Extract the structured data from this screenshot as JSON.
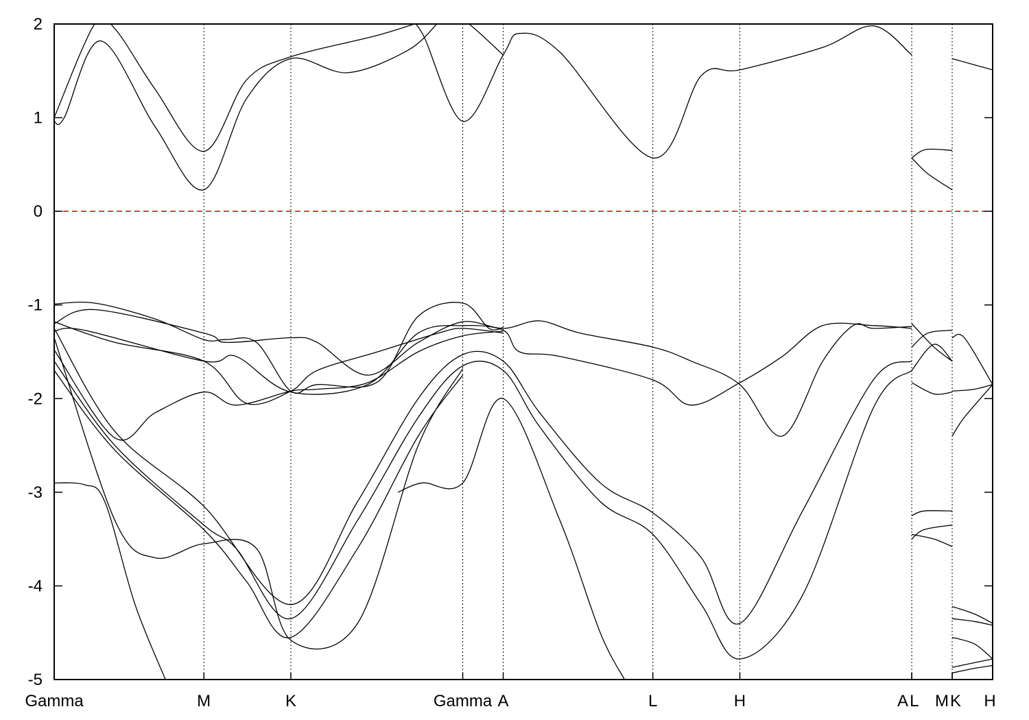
{
  "chart_data": {
    "type": "line",
    "title": "",
    "xlabel": "",
    "ylabel": "",
    "ylim": [
      -5,
      2
    ],
    "y_ticks": [
      "-5",
      "-4",
      "-3",
      "-2",
      "-1",
      "0",
      "1",
      "2"
    ],
    "x_range": [
      0,
      4.64
    ],
    "kpoints": [
      {
        "label": "Gamma",
        "x": 0.0
      },
      {
        "label": "M",
        "x": 0.74
      },
      {
        "label": "K",
        "x": 1.17
      },
      {
        "label": "Gamma",
        "x": 2.02
      },
      {
        "label": "A",
        "x": 2.22
      },
      {
        "label": "L",
        "x": 2.96
      },
      {
        "label": "H",
        "x": 3.39
      },
      {
        "label": "A",
        "x": 4.24
      },
      {
        "label": "L",
        "x": 4.24
      },
      {
        "label": "M",
        "x": 4.44
      },
      {
        "label": "K",
        "x": 4.44
      },
      {
        "label": "H",
        "x": 4.64
      }
    ],
    "fermi_level": 0,
    "fermi_color": "#e00000",
    "line_color": "#000000",
    "grid": false,
    "series": [
      {
        "values": [
          [
            0,
            0.96
          ],
          [
            0.05,
            1.0
          ],
          [
            0.23,
            1.82
          ],
          [
            0.5,
            0.9
          ],
          [
            0.74,
            0.23
          ],
          [
            0.95,
            1.2
          ],
          [
            1.17,
            1.63
          ],
          [
            1.45,
            1.48
          ],
          [
            1.75,
            1.72
          ],
          [
            1.9,
            2.02
          ]
        ]
      },
      {
        "values": [
          [
            0,
            1.0
          ],
          [
            0.2,
            2.0
          ],
          [
            0.3,
            1.95
          ],
          [
            0.5,
            1.3
          ],
          [
            0.74,
            0.64
          ],
          [
            0.95,
            1.4
          ],
          [
            1.17,
            1.65
          ],
          [
            1.6,
            1.88
          ],
          [
            1.85,
            2.05
          ]
        ]
      },
      {
        "values": [
          [
            1.72,
            2.1
          ],
          [
            1.82,
            1.9
          ],
          [
            2.02,
            0.96
          ],
          [
            2.22,
            1.67
          ],
          [
            2.3,
            1.9
          ],
          [
            2.5,
            1.7
          ],
          [
            2.96,
            0.57
          ],
          [
            3.2,
            1.45
          ],
          [
            3.39,
            1.51
          ],
          [
            3.8,
            1.75
          ],
          [
            4.05,
            1.98
          ],
          [
            4.24,
            1.67
          ]
        ]
      },
      {
        "values": [
          [
            1.9,
            2.1
          ],
          [
            2.02,
            2.05
          ],
          [
            2.22,
            1.67
          ]
        ]
      },
      {
        "values": [
          [
            4.24,
            0.57
          ],
          [
            4.31,
            0.66
          ],
          [
            4.44,
            0.65
          ]
        ]
      },
      {
        "values": [
          [
            4.24,
            0.57
          ],
          [
            4.32,
            0.4
          ],
          [
            4.44,
            0.23
          ]
        ]
      },
      {
        "values": [
          [
            4.44,
            1.63
          ],
          [
            4.64,
            1.51
          ]
        ]
      },
      {
        "values": [
          [
            0,
            -0.99
          ],
          [
            0.2,
            -0.98
          ],
          [
            0.5,
            -1.15
          ],
          [
            0.74,
            -1.37
          ],
          [
            0.85,
            -1.37
          ],
          [
            1.0,
            -1.4
          ],
          [
            1.17,
            -1.92
          ],
          [
            1.3,
            -1.85
          ],
          [
            1.6,
            -1.82
          ],
          [
            1.8,
            -1.12
          ],
          [
            2.02,
            -0.98
          ],
          [
            2.15,
            -1.25
          ],
          [
            2.22,
            -1.24
          ]
        ]
      },
      {
        "values": [
          [
            0,
            -1.2
          ],
          [
            0.2,
            -1.05
          ],
          [
            0.74,
            -1.3
          ],
          [
            0.85,
            -1.4
          ],
          [
            1.17,
            -1.35
          ],
          [
            1.3,
            -1.4
          ],
          [
            1.55,
            -1.75
          ],
          [
            1.8,
            -1.4
          ],
          [
            2.02,
            -1.18
          ],
          [
            2.22,
            -1.25
          ],
          [
            2.4,
            -1.17
          ],
          [
            2.6,
            -1.3
          ],
          [
            2.96,
            -1.45
          ],
          [
            3.15,
            -1.6
          ],
          [
            3.39,
            -1.85
          ],
          [
            3.6,
            -2.4
          ],
          [
            3.8,
            -1.6
          ],
          [
            3.95,
            -1.22
          ],
          [
            4.05,
            -1.25
          ],
          [
            4.24,
            -1.23
          ]
        ]
      },
      {
        "values": [
          [
            0,
            -1.28
          ],
          [
            0.15,
            -1.27
          ],
          [
            0.74,
            -1.6
          ],
          [
            0.9,
            -1.55
          ],
          [
            1.17,
            -1.93
          ],
          [
            1.55,
            -1.85
          ],
          [
            1.8,
            -1.3
          ],
          [
            2.02,
            -1.22
          ],
          [
            2.22,
            -1.27
          ],
          [
            2.3,
            -1.5
          ],
          [
            2.5,
            -1.55
          ],
          [
            2.96,
            -1.8
          ],
          [
            3.15,
            -2.07
          ],
          [
            3.39,
            -1.83
          ],
          [
            3.6,
            -1.55
          ],
          [
            3.8,
            -1.22
          ],
          [
            4.05,
            -1.22
          ],
          [
            4.24,
            -1.25
          ]
        ]
      },
      {
        "values": [
          [
            0,
            -1.18
          ],
          [
            0.3,
            -1.4
          ],
          [
            0.74,
            -1.6
          ],
          [
            0.95,
            -2.05
          ],
          [
            1.17,
            -1.92
          ],
          [
            1.3,
            -1.7
          ],
          [
            1.6,
            -1.5
          ],
          [
            1.9,
            -1.3
          ],
          [
            2.02,
            -1.25
          ],
          [
            2.22,
            -1.3
          ]
        ]
      },
      {
        "values": [
          [
            0,
            -1.48
          ],
          [
            0.3,
            -2.42
          ],
          [
            0.5,
            -2.15
          ],
          [
            0.74,
            -1.93
          ],
          [
            0.9,
            -2.07
          ],
          [
            1.17,
            -1.92
          ],
          [
            1.3,
            -1.9
          ],
          [
            1.55,
            -1.83
          ],
          [
            1.8,
            -1.5
          ],
          [
            2.02,
            -1.33
          ],
          [
            2.22,
            -1.28
          ]
        ]
      },
      {
        "values": [
          [
            0,
            -1.25
          ],
          [
            0.3,
            -2.35
          ],
          [
            0.74,
            -3.15
          ],
          [
            1.17,
            -4.2
          ],
          [
            1.5,
            -3.1
          ],
          [
            1.8,
            -2.0
          ],
          [
            2.02,
            -1.53
          ],
          [
            2.22,
            -1.6
          ],
          [
            2.4,
            -2.15
          ],
          [
            2.7,
            -2.9
          ],
          [
            2.96,
            -3.22
          ],
          [
            3.2,
            -3.7
          ],
          [
            3.39,
            -4.4
          ],
          [
            3.7,
            -3.2
          ],
          [
            4.05,
            -1.8
          ],
          [
            4.24,
            -1.6
          ]
        ]
      },
      {
        "values": [
          [
            0,
            -1.6
          ],
          [
            0.3,
            -2.5
          ],
          [
            0.74,
            -3.35
          ],
          [
            0.9,
            -3.6
          ],
          [
            1.17,
            -4.35
          ],
          [
            1.5,
            -3.3
          ],
          [
            1.8,
            -2.2
          ],
          [
            2.02,
            -1.65
          ],
          [
            2.22,
            -1.7
          ],
          [
            2.4,
            -2.3
          ],
          [
            2.7,
            -3.1
          ],
          [
            2.96,
            -3.45
          ],
          [
            3.2,
            -4.2
          ],
          [
            3.39,
            -4.78
          ],
          [
            3.7,
            -4.1
          ],
          [
            4.05,
            -2.1
          ],
          [
            4.24,
            -1.7
          ]
        ]
      },
      {
        "values": [
          [
            0,
            -1.7
          ],
          [
            0.3,
            -2.55
          ],
          [
            0.74,
            -3.4
          ],
          [
            0.95,
            -3.95
          ],
          [
            1.17,
            -4.55
          ],
          [
            1.5,
            -3.6
          ],
          [
            1.8,
            -2.4
          ],
          [
            2.02,
            -1.75
          ]
        ]
      },
      {
        "values": [
          [
            0,
            -1.35
          ],
          [
            0.3,
            -3.3
          ],
          [
            0.5,
            -3.7
          ],
          [
            0.74,
            -3.55
          ],
          [
            1.0,
            -3.6
          ],
          [
            1.17,
            -4.58
          ],
          [
            1.5,
            -4.4
          ],
          [
            1.8,
            -2.5
          ],
          [
            2.02,
            -1.68
          ]
        ]
      },
      {
        "values": [
          [
            0,
            -2.9
          ],
          [
            0.15,
            -2.92
          ],
          [
            0.25,
            -3.1
          ],
          [
            0.4,
            -4.2
          ],
          [
            0.55,
            -5.0
          ]
        ]
      },
      {
        "values": [
          [
            1.7,
            -3.0
          ],
          [
            1.82,
            -2.9
          ],
          [
            2.02,
            -2.9
          ],
          [
            2.22,
            -2.0
          ],
          [
            2.5,
            -3.3
          ],
          [
            2.7,
            -4.5
          ],
          [
            2.82,
            -5.0
          ]
        ]
      },
      {
        "values": [
          [
            4.24,
            -1.2
          ],
          [
            4.35,
            -1.45
          ],
          [
            4.44,
            -1.6
          ]
        ]
      },
      {
        "values": [
          [
            4.24,
            -1.45
          ],
          [
            4.32,
            -1.3
          ],
          [
            4.44,
            -1.27
          ]
        ]
      },
      {
        "values": [
          [
            4.24,
            -1.83
          ],
          [
            4.35,
            -1.95
          ],
          [
            4.44,
            -1.93
          ]
        ]
      },
      {
        "values": [
          [
            4.24,
            -1.7
          ],
          [
            4.35,
            -1.42
          ],
          [
            4.44,
            -1.6
          ]
        ]
      },
      {
        "values": [
          [
            4.24,
            -3.25
          ],
          [
            4.3,
            -3.2
          ],
          [
            4.44,
            -3.2
          ]
        ]
      },
      {
        "values": [
          [
            4.24,
            -3.5
          ],
          [
            4.3,
            -3.4
          ],
          [
            4.44,
            -3.35
          ]
        ]
      },
      {
        "values": [
          [
            4.24,
            -3.45
          ],
          [
            4.35,
            -3.5
          ],
          [
            4.44,
            -3.58
          ]
        ]
      },
      {
        "values": [
          [
            4.44,
            -1.35
          ],
          [
            4.5,
            -1.35
          ],
          [
            4.64,
            -1.85
          ]
        ]
      },
      {
        "values": [
          [
            4.44,
            -2.4
          ],
          [
            4.5,
            -2.2
          ],
          [
            4.64,
            -1.85
          ]
        ]
      },
      {
        "values": [
          [
            4.44,
            -1.92
          ],
          [
            4.55,
            -1.9
          ],
          [
            4.64,
            -1.85
          ]
        ]
      },
      {
        "values": [
          [
            4.44,
            -4.22
          ],
          [
            4.55,
            -4.3
          ],
          [
            4.64,
            -4.4
          ]
        ]
      },
      {
        "values": [
          [
            4.44,
            -4.35
          ],
          [
            4.55,
            -4.38
          ],
          [
            4.64,
            -4.42
          ]
        ]
      },
      {
        "values": [
          [
            4.44,
            -4.55
          ],
          [
            4.55,
            -4.62
          ],
          [
            4.64,
            -4.78
          ]
        ]
      },
      {
        "values": [
          [
            4.44,
            -4.87
          ],
          [
            4.55,
            -4.82
          ],
          [
            4.64,
            -4.78
          ]
        ]
      },
      {
        "values": [
          [
            4.44,
            -4.93
          ],
          [
            4.55,
            -4.88
          ],
          [
            4.64,
            -4.85
          ]
        ]
      }
    ]
  }
}
